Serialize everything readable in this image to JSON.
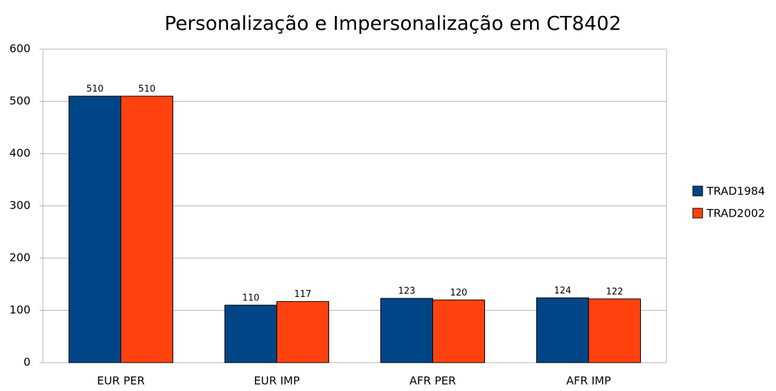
{
  "chart_data": {
    "type": "bar",
    "title": "Personalização e Impersonalização em CT8402",
    "categories": [
      "EUR PER",
      "EUR IMP",
      "AFR PER",
      "AFR IMP"
    ],
    "series": [
      {
        "name": "TRAD1984",
        "color": "#004586",
        "values": [
          510,
          110,
          123,
          124
        ]
      },
      {
        "name": "TRAD2002",
        "color": "#ff420e",
        "values": [
          510,
          117,
          120,
          122
        ]
      }
    ],
    "ylim": [
      0,
      600
    ],
    "yticks": [
      0,
      100,
      200,
      300,
      400,
      500,
      600
    ],
    "grid": true,
    "legend": "right"
  }
}
